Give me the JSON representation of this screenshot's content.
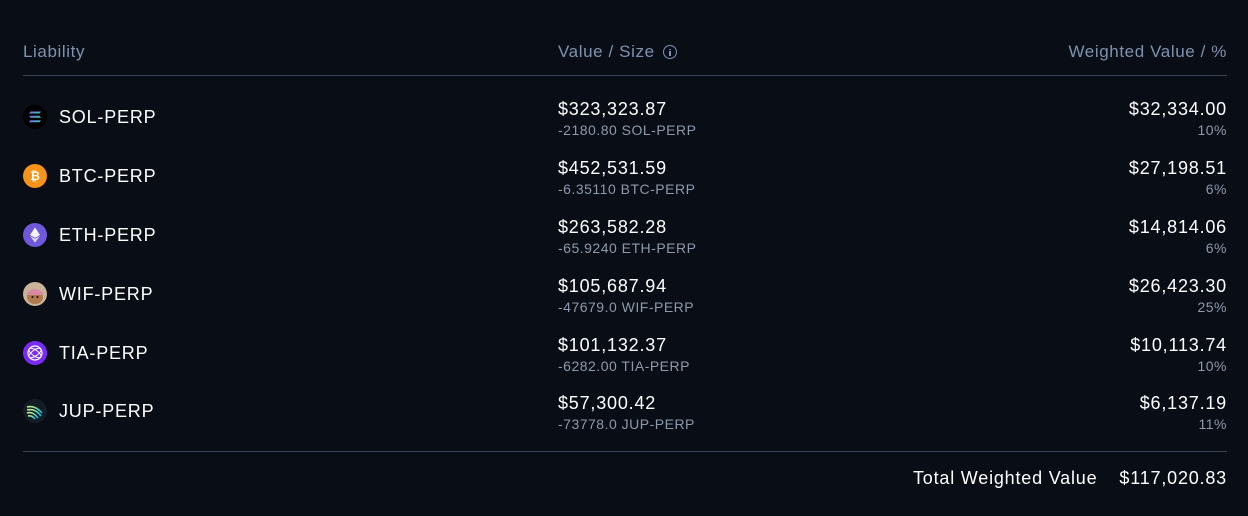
{
  "header": {
    "liability": "Liability",
    "value_size": "Value / Size",
    "weighted": "Weighted Value / %"
  },
  "rows": [
    {
      "asset": "SOL-PERP",
      "icon": "sol-icon",
      "value": "$323,323.87",
      "size": "-2180.80 SOL-PERP",
      "weighted": "$32,334.00",
      "pct": "10%"
    },
    {
      "asset": "BTC-PERP",
      "icon": "btc-icon",
      "value": "$452,531.59",
      "size": "-6.35110 BTC-PERP",
      "weighted": "$27,198.51",
      "pct": "6%"
    },
    {
      "asset": "ETH-PERP",
      "icon": "eth-icon",
      "value": "$263,582.28",
      "size": "-65.9240 ETH-PERP",
      "weighted": "$14,814.06",
      "pct": "6%"
    },
    {
      "asset": "WIF-PERP",
      "icon": "wif-icon",
      "value": "$105,687.94",
      "size": "-47679.0 WIF-PERP",
      "weighted": "$26,423.30",
      "pct": "25%"
    },
    {
      "asset": "TIA-PERP",
      "icon": "tia-icon",
      "value": "$101,132.37",
      "size": "-6282.00 TIA-PERP",
      "weighted": "$10,113.74",
      "pct": "10%"
    },
    {
      "asset": "JUP-PERP",
      "icon": "jup-icon",
      "value": "$57,300.42",
      "size": "-73778.0 JUP-PERP",
      "weighted": "$6,137.19",
      "pct": "11%"
    }
  ],
  "footer": {
    "total_label": "Total Weighted Value",
    "total_value": "$117,020.83"
  },
  "colors": {
    "background": "#080d16",
    "header_text": "#7f93ae",
    "sub_text": "#8d9aac",
    "divider": "#3a4656"
  }
}
